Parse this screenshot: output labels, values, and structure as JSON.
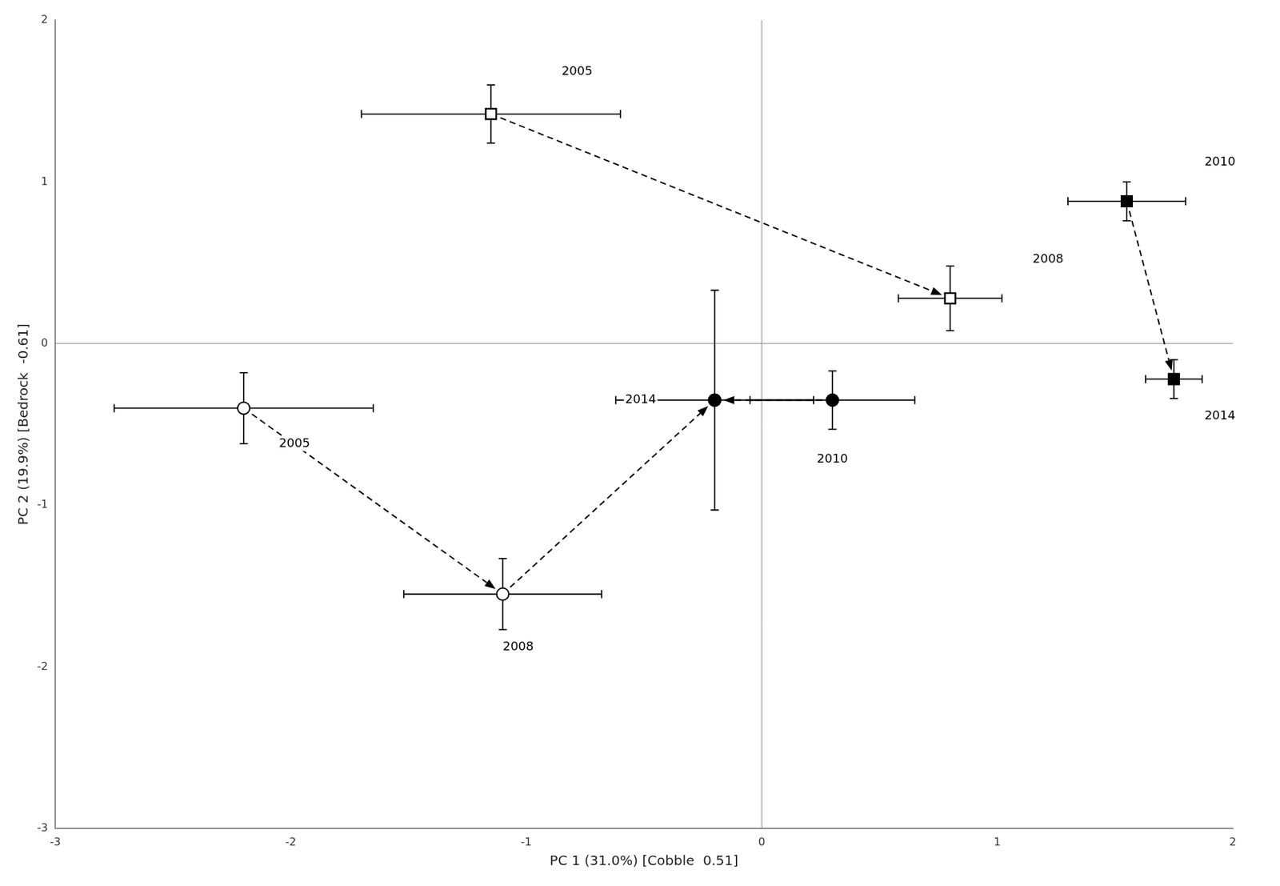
{
  "chart_data": {
    "type": "scatter",
    "xlabel": "PC 1 (31.0%) [Cobble  0.51]",
    "ylabel": "PC 2 (19.9%) [Bedrock  -0.61]",
    "xlim": [
      -3,
      2
    ],
    "ylim": [
      -3,
      2
    ],
    "xticks": [
      -3,
      -2,
      -1,
      0,
      1,
      2
    ],
    "yticks": [
      -3,
      -2,
      -1,
      0,
      1,
      2
    ],
    "grid": false,
    "vlines": [
      0
    ],
    "hlines": [
      0
    ],
    "series": [
      {
        "marker": "open_circle",
        "color": "#000000",
        "points": [
          {
            "x": -2.2,
            "y": -0.4,
            "xerr": 0.55,
            "yerr": 0.22,
            "label": "2005",
            "label_x": -2.05,
            "label_y": -0.62
          },
          {
            "x": -1.1,
            "y": -1.55,
            "xerr": 0.42,
            "yerr": 0.22,
            "label": "2008",
            "label_x": -1.1,
            "label_y": -1.88
          },
          {
            "x": -0.2,
            "y": -0.35,
            "xerr": 0.42,
            "yerr": 0.68,
            "label": "2014",
            "label_x": -0.58,
            "label_y": -0.35
          }
        ]
      },
      {
        "marker": "filled_circle",
        "color": "#000000",
        "points": [
          {
            "x": -0.2,
            "y": -0.35,
            "xerr": 0.0,
            "yerr": 0.0
          },
          {
            "x": 0.3,
            "y": -0.35,
            "xerr": 0.35,
            "yerr": 0.18,
            "label": "2010",
            "label_x": 0.3,
            "label_y": -0.68
          }
        ]
      },
      {
        "marker": "open_square",
        "color": "#000000",
        "points": [
          {
            "x": -1.15,
            "y": 1.42,
            "xerr": 0.55,
            "yerr": 0.18,
            "label": "2005",
            "label_x": -0.85,
            "label_y": 1.68
          },
          {
            "x": 0.8,
            "y": 0.28,
            "xerr": 0.22,
            "yerr": 0.2,
            "label": "2008",
            "label_x": 1.15,
            "label_y": 0.52
          }
        ]
      },
      {
        "marker": "filled_square",
        "color": "#000000",
        "points": [
          {
            "x": 1.55,
            "y": 0.88,
            "xerr": 0.25,
            "yerr": 0.12,
            "label": "2010",
            "label_x": 1.88,
            "label_y": 1.12
          },
          {
            "x": 1.75,
            "y": -0.22,
            "xerr": 0.12,
            "yerr": 0.12,
            "label": "2014",
            "label_x": 1.88,
            "label_y": -0.45
          }
        ]
      }
    ],
    "arrows": [
      {
        "x1": -2.2,
        "y1": -0.4,
        "x2": -1.1,
        "y2": -1.55
      },
      {
        "x1": -1.1,
        "y1": -1.55,
        "x2": -0.2,
        "y2": -0.35
      },
      {
        "x1": 0.3,
        "y1": -0.35,
        "x2": -0.2,
        "y2": -0.35
      },
      {
        "x1": -1.15,
        "y1": 1.42,
        "x2": 0.8,
        "y2": 0.28
      },
      {
        "x1": 1.55,
        "y1": 0.88,
        "x2": 1.75,
        "y2": -0.22
      }
    ]
  }
}
